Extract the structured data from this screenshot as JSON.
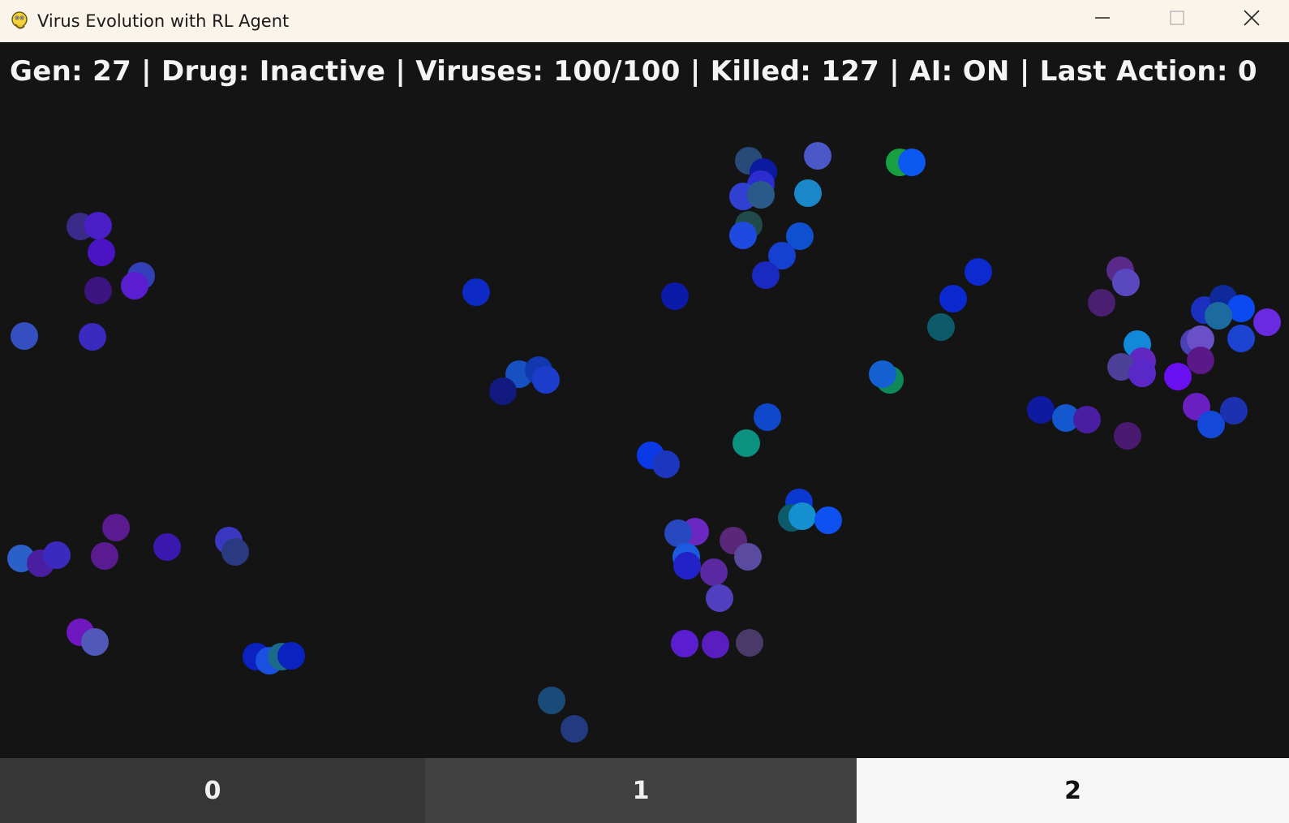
{
  "window": {
    "title": "Virus Evolution with RL Agent",
    "icon": "pygame-snake-icon",
    "controls": [
      "minimize-icon",
      "maximize-icon",
      "close-icon"
    ]
  },
  "status_text": "Gen: 27 | Drug: Inactive | Viruses: 100/100 | Killed: 127 | AI: ON | Last Action: 0",
  "status": {
    "generation": 27,
    "drug": "Inactive",
    "viruses": "100/100",
    "killed": 127,
    "ai": "ON",
    "last_action": 0
  },
  "actions": [
    {
      "label": "0",
      "selected": false
    },
    {
      "label": "1",
      "selected": false
    },
    {
      "label": "2",
      "selected": true
    }
  ],
  "colors": {
    "background": "#141414",
    "titlebar": "#fbf4ea",
    "status_text": "#f4f4f4",
    "button_dark": "#363636",
    "button_mid": "#414141",
    "button_selected": "#f6f6f6"
  }
}
